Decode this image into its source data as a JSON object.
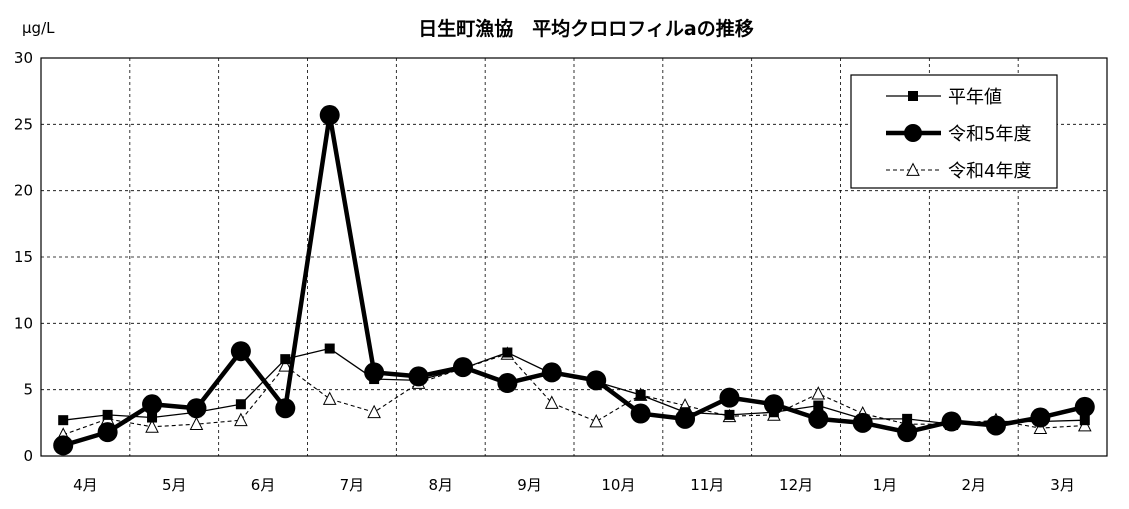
{
  "chart_data": {
    "type": "line",
    "title": "日生町漁協　平均クロロフィルaの推移",
    "unit_label": "μg/L",
    "ylim": [
      0,
      30
    ],
    "y_ticks": [
      0,
      5,
      10,
      15,
      20,
      25,
      30
    ],
    "month_labels": [
      "4月",
      "5月",
      "6月",
      "7月",
      "8月",
      "9月",
      "10月",
      "11月",
      "12月",
      "1月",
      "2月",
      "3月"
    ],
    "grid": true,
    "grid_style": "dashed",
    "legend_position": "top-right",
    "series": [
      {
        "name": "平年値",
        "style": "solid-thin",
        "marker": "square",
        "color": "#000000",
        "values": [
          2.7,
          3.1,
          2.9,
          3.3,
          3.9,
          7.3,
          8.1,
          5.8,
          5.7,
          6.6,
          7.8,
          6.2,
          5.6,
          4.6,
          3.3,
          3.1,
          3.3,
          3.8,
          2.8,
          2.8,
          2.4,
          2.6,
          2.6,
          2.7
        ]
      },
      {
        "name": "令和5年度",
        "style": "solid-thick",
        "marker": "circle",
        "color": "#000000",
        "values": [
          0.8,
          1.8,
          3.9,
          3.6,
          7.9,
          3.6,
          25.7,
          6.3,
          6.0,
          6.7,
          5.5,
          6.3,
          5.7,
          3.2,
          2.8,
          4.4,
          3.9,
          2.8,
          2.5,
          1.8,
          2.6,
          2.3,
          2.9,
          3.7
        ]
      },
      {
        "name": "令和4年度",
        "style": "dashed-thin",
        "marker": "triangle",
        "color": "#000000",
        "values": [
          1.6,
          2.8,
          2.2,
          2.4,
          2.7,
          6.8,
          4.3,
          3.3,
          5.5,
          6.6,
          7.7,
          4.0,
          2.6,
          4.6,
          3.8,
          3.0,
          3.1,
          4.7,
          3.2,
          2.4,
          2.4,
          2.7,
          2.1,
          2.3
        ]
      }
    ]
  }
}
